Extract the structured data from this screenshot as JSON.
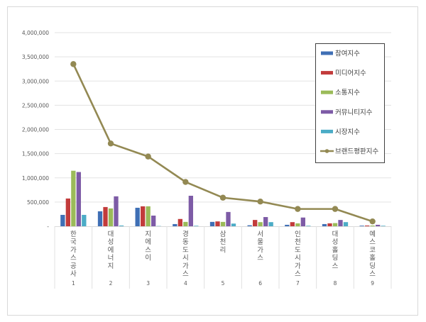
{
  "chart_data": {
    "type": "bar",
    "title": "",
    "xlabel": "",
    "ylabel": "",
    "ylim": [
      0,
      4000000
    ],
    "y_ticks": [
      "-",
      "500,000",
      "1,000,000",
      "1,500,000",
      "2,000,000",
      "2,500,000",
      "3,000,000",
      "3,500,000",
      "4,000,000"
    ],
    "y_tick_values": [
      0,
      500000,
      1000000,
      1500000,
      2000000,
      2500000,
      3000000,
      3500000,
      4000000
    ],
    "grid": true,
    "legend_position": "upper-right-inside",
    "categories": [
      "한국가스공사",
      "대성에너지",
      "지에스이",
      "경동도시가스",
      "삼천리",
      "서울가스",
      "인천도시가스",
      "대성홀딩스",
      "예스코홀딩스"
    ],
    "category_ranks": [
      "1",
      "2",
      "3",
      "4",
      "5",
      "6",
      "7",
      "8",
      "9"
    ],
    "series": [
      {
        "name": "참여지수",
        "type": "bar",
        "color": "#3f6fb5",
        "values": [
          235000,
          309000,
          382000,
          45000,
          90000,
          20000,
          30000,
          45000,
          12000
        ]
      },
      {
        "name": "미디어지수",
        "type": "bar",
        "color": "#c23b3b",
        "values": [
          573000,
          397000,
          412000,
          150000,
          100000,
          130000,
          85000,
          60000,
          15000
        ]
      },
      {
        "name": "소통지수",
        "type": "bar",
        "color": "#9bbb59",
        "values": [
          1147000,
          368000,
          412000,
          90000,
          90000,
          85000,
          60000,
          65000,
          15000
        ]
      },
      {
        "name": "커뮤니티지수",
        "type": "bar",
        "color": "#7d5ba6",
        "values": [
          1120000,
          618000,
          220000,
          630000,
          295000,
          190000,
          180000,
          130000,
          30000
        ]
      },
      {
        "name": "시장지수",
        "type": "bar",
        "color": "#4bacc6",
        "values": [
          235000,
          15000,
          5000,
          10000,
          55000,
          85000,
          10000,
          85000,
          10000
        ]
      },
      {
        "name": "브랜드평판지수",
        "type": "line",
        "color": "#938953",
        "values": [
          3350000,
          1710000,
          1440000,
          915000,
          590000,
          510000,
          357000,
          357000,
          100000
        ]
      }
    ]
  }
}
